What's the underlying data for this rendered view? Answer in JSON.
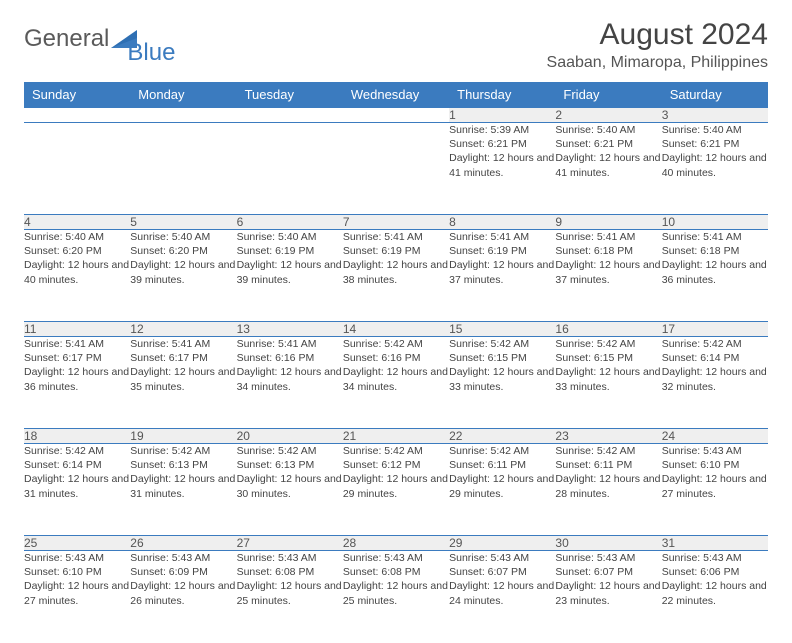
{
  "brand": {
    "part1": "General",
    "part2": "Blue"
  },
  "title": "August 2024",
  "location": "Saaban, Mimaropa, Philippines",
  "colors": {
    "header_bg": "#3b7bbf",
    "header_text": "#ffffff",
    "daynum_bg": "#efefef",
    "row_border": "#3b7bbf",
    "text": "#444444",
    "background": "#ffffff"
  },
  "weekdays": [
    "Sunday",
    "Monday",
    "Tuesday",
    "Wednesday",
    "Thursday",
    "Friday",
    "Saturday"
  ],
  "weeks": [
    {
      "nums": [
        "",
        "",
        "",
        "",
        "1",
        "2",
        "3"
      ],
      "cells": [
        null,
        null,
        null,
        null,
        {
          "sunrise": "5:39 AM",
          "sunset": "6:21 PM",
          "daylight": "12 hours and 41 minutes."
        },
        {
          "sunrise": "5:40 AM",
          "sunset": "6:21 PM",
          "daylight": "12 hours and 41 minutes."
        },
        {
          "sunrise": "5:40 AM",
          "sunset": "6:21 PM",
          "daylight": "12 hours and 40 minutes."
        }
      ]
    },
    {
      "nums": [
        "4",
        "5",
        "6",
        "7",
        "8",
        "9",
        "10"
      ],
      "cells": [
        {
          "sunrise": "5:40 AM",
          "sunset": "6:20 PM",
          "daylight": "12 hours and 40 minutes."
        },
        {
          "sunrise": "5:40 AM",
          "sunset": "6:20 PM",
          "daylight": "12 hours and 39 minutes."
        },
        {
          "sunrise": "5:40 AM",
          "sunset": "6:19 PM",
          "daylight": "12 hours and 39 minutes."
        },
        {
          "sunrise": "5:41 AM",
          "sunset": "6:19 PM",
          "daylight": "12 hours and 38 minutes."
        },
        {
          "sunrise": "5:41 AM",
          "sunset": "6:19 PM",
          "daylight": "12 hours and 37 minutes."
        },
        {
          "sunrise": "5:41 AM",
          "sunset": "6:18 PM",
          "daylight": "12 hours and 37 minutes."
        },
        {
          "sunrise": "5:41 AM",
          "sunset": "6:18 PM",
          "daylight": "12 hours and 36 minutes."
        }
      ]
    },
    {
      "nums": [
        "11",
        "12",
        "13",
        "14",
        "15",
        "16",
        "17"
      ],
      "cells": [
        {
          "sunrise": "5:41 AM",
          "sunset": "6:17 PM",
          "daylight": "12 hours and 36 minutes."
        },
        {
          "sunrise": "5:41 AM",
          "sunset": "6:17 PM",
          "daylight": "12 hours and 35 minutes."
        },
        {
          "sunrise": "5:41 AM",
          "sunset": "6:16 PM",
          "daylight": "12 hours and 34 minutes."
        },
        {
          "sunrise": "5:42 AM",
          "sunset": "6:16 PM",
          "daylight": "12 hours and 34 minutes."
        },
        {
          "sunrise": "5:42 AM",
          "sunset": "6:15 PM",
          "daylight": "12 hours and 33 minutes."
        },
        {
          "sunrise": "5:42 AM",
          "sunset": "6:15 PM",
          "daylight": "12 hours and 33 minutes."
        },
        {
          "sunrise": "5:42 AM",
          "sunset": "6:14 PM",
          "daylight": "12 hours and 32 minutes."
        }
      ]
    },
    {
      "nums": [
        "18",
        "19",
        "20",
        "21",
        "22",
        "23",
        "24"
      ],
      "cells": [
        {
          "sunrise": "5:42 AM",
          "sunset": "6:14 PM",
          "daylight": "12 hours and 31 minutes."
        },
        {
          "sunrise": "5:42 AM",
          "sunset": "6:13 PM",
          "daylight": "12 hours and 31 minutes."
        },
        {
          "sunrise": "5:42 AM",
          "sunset": "6:13 PM",
          "daylight": "12 hours and 30 minutes."
        },
        {
          "sunrise": "5:42 AM",
          "sunset": "6:12 PM",
          "daylight": "12 hours and 29 minutes."
        },
        {
          "sunrise": "5:42 AM",
          "sunset": "6:11 PM",
          "daylight": "12 hours and 29 minutes."
        },
        {
          "sunrise": "5:42 AM",
          "sunset": "6:11 PM",
          "daylight": "12 hours and 28 minutes."
        },
        {
          "sunrise": "5:43 AM",
          "sunset": "6:10 PM",
          "daylight": "12 hours and 27 minutes."
        }
      ]
    },
    {
      "nums": [
        "25",
        "26",
        "27",
        "28",
        "29",
        "30",
        "31"
      ],
      "cells": [
        {
          "sunrise": "5:43 AM",
          "sunset": "6:10 PM",
          "daylight": "12 hours and 27 minutes."
        },
        {
          "sunrise": "5:43 AM",
          "sunset": "6:09 PM",
          "daylight": "12 hours and 26 minutes."
        },
        {
          "sunrise": "5:43 AM",
          "sunset": "6:08 PM",
          "daylight": "12 hours and 25 minutes."
        },
        {
          "sunrise": "5:43 AM",
          "sunset": "6:08 PM",
          "daylight": "12 hours and 25 minutes."
        },
        {
          "sunrise": "5:43 AM",
          "sunset": "6:07 PM",
          "daylight": "12 hours and 24 minutes."
        },
        {
          "sunrise": "5:43 AM",
          "sunset": "6:07 PM",
          "daylight": "12 hours and 23 minutes."
        },
        {
          "sunrise": "5:43 AM",
          "sunset": "6:06 PM",
          "daylight": "12 hours and 22 minutes."
        }
      ]
    }
  ],
  "labels": {
    "sunrise": "Sunrise: ",
    "sunset": "Sunset: ",
    "daylight": "Daylight: "
  }
}
